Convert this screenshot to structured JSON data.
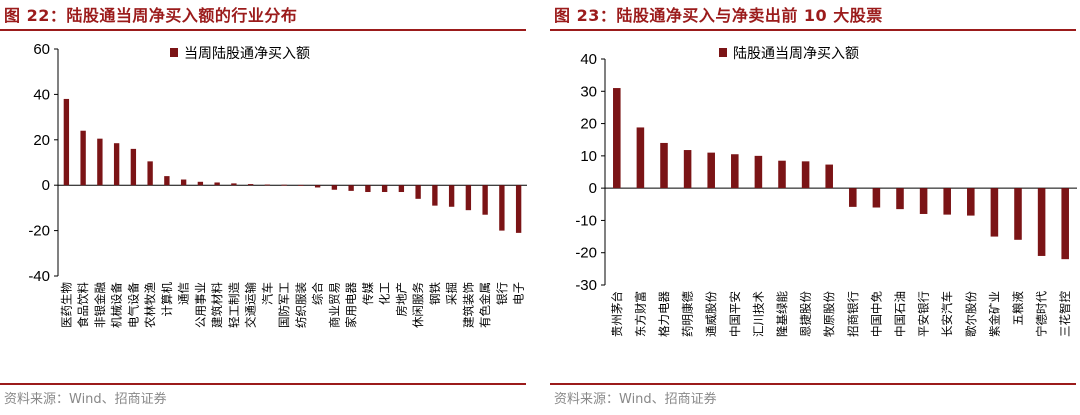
{
  "colors": {
    "accent": "#9b1b1b",
    "bar": "#7b1416",
    "source_text": "#888888"
  },
  "chart_data": [
    {
      "type": "bar",
      "title": "图 22：陆股通当周净买入额的行业分布",
      "source": "资料来源：Wind、招商证券",
      "legend_position": "top-center",
      "grid": false,
      "ylim": [
        -40,
        60
      ],
      "yticks": [
        60,
        40,
        20,
        0,
        -20,
        -40
      ],
      "categories": [
        "医药生物",
        "食品饮料",
        "非银金融",
        "机械设备",
        "电气设备",
        "农林牧渔",
        "计算机",
        "通信",
        "公用事业",
        "建筑材料",
        "轻工制造",
        "交通运输",
        "汽车",
        "国防军工",
        "纺织服装",
        "综合",
        "商业贸易",
        "家用电器",
        "传媒",
        "化工",
        "房地产",
        "休闲服务",
        "钢铁",
        "采掘",
        "建筑装饰",
        "有色金属",
        "银行",
        "电子"
      ],
      "series": [
        {
          "name": "当周陆股通净买入额",
          "values": [
            38,
            24,
            20.5,
            18.5,
            16,
            10.5,
            4,
            2.5,
            1.5,
            1.2,
            0.8,
            0.5,
            0.3,
            0.2,
            0.1,
            -1,
            -2,
            -2.5,
            -3,
            -3,
            -3,
            -6,
            -9,
            -9.5,
            -11,
            -13,
            -20,
            -21
          ]
        }
      ]
    },
    {
      "type": "bar",
      "title": "图 23：陆股通净买入与净卖出前 10 大股票",
      "source": "资料来源：Wind、招商证券",
      "legend_position": "top-center",
      "grid": false,
      "ylim": [
        -30,
        40
      ],
      "yticks": [
        40,
        30,
        20,
        10,
        0,
        -10,
        -20,
        -30
      ],
      "categories": [
        "贵州茅台",
        "东方财富",
        "格力电器",
        "药明康德",
        "通威股份",
        "中国平安",
        "汇川技术",
        "隆基绿能",
        "恩捷股份",
        "牧原股份",
        "招商银行",
        "中国中免",
        "中国石油",
        "平安银行",
        "长安汽车",
        "歌尔股份",
        "紫金矿业",
        "五粮液",
        "宁德时代",
        "三花智控"
      ],
      "series": [
        {
          "name": "陆股通当周净买入额",
          "values": [
            31,
            18.8,
            14,
            11.8,
            11,
            10.5,
            10,
            8.5,
            8.3,
            7.3,
            -5.8,
            -6,
            -6.5,
            -8,
            -8.2,
            -8.5,
            -15,
            -16,
            -21,
            -22
          ]
        }
      ]
    }
  ]
}
